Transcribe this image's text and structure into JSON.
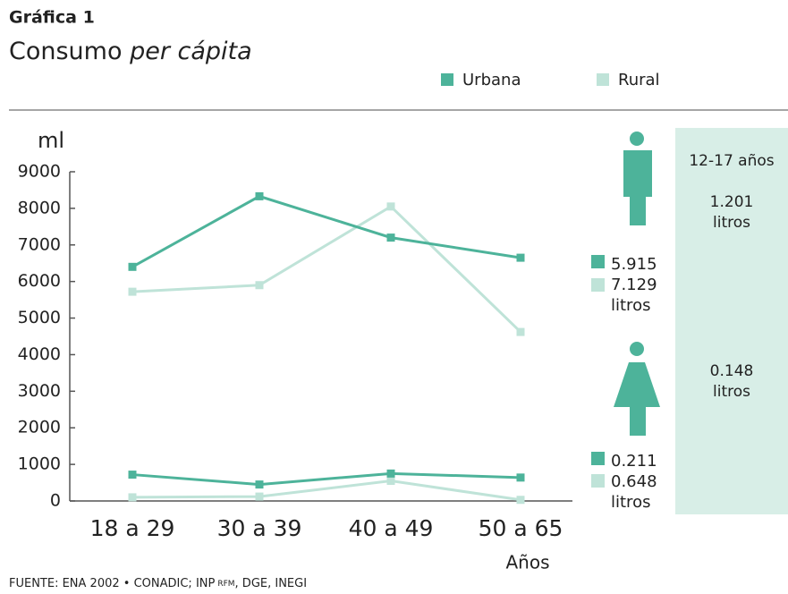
{
  "chart_data": {
    "type": "line",
    "title": "Gráfica 1",
    "subtitle": [
      "Consumo",
      "per cápita"
    ],
    "y_label": "ml",
    "x_label": "Años",
    "source": [
      "FUENTE: ENA 2002 • CONADIC; INP",
      "RFM",
      ", DGE, INEGI"
    ],
    "categories": [
      "18 a 29",
      "30 a 39",
      "40 a 49",
      "50 a 65"
    ],
    "legend": [
      {
        "name": "Urbana",
        "color": "#4db39a"
      },
      {
        "name": "Rural",
        "color": "#bfe3d8"
      }
    ],
    "series": [
      {
        "color": "#bfe3d8",
        "values": [
          5720,
          5900,
          8050,
          4620
        ]
      },
      {
        "color": "#4db39a",
        "values": [
          6400,
          8330,
          7200,
          6650
        ]
      },
      {
        "color": "#bfe3d8",
        "values": [
          100,
          120,
          550,
          30
        ]
      },
      {
        "color": "#4db39a",
        "values": [
          720,
          450,
          750,
          640
        ]
      }
    ],
    "ylim": [
      0,
      9000
    ],
    "yticks": [
      0,
      1000,
      2000,
      3000,
      4000,
      5000,
      6000,
      7000,
      8000,
      9000
    ],
    "grid": false,
    "male_labels": {
      "rural": "5.915",
      "urbana": "7.129",
      "unit": "litros"
    },
    "female_labels": {
      "rural": "0.211",
      "urbana": "0.648",
      "unit": "litros"
    },
    "panel": {
      "title": "12-17 años",
      "male": "1.201",
      "female": "0.148",
      "unit": "litros"
    }
  }
}
